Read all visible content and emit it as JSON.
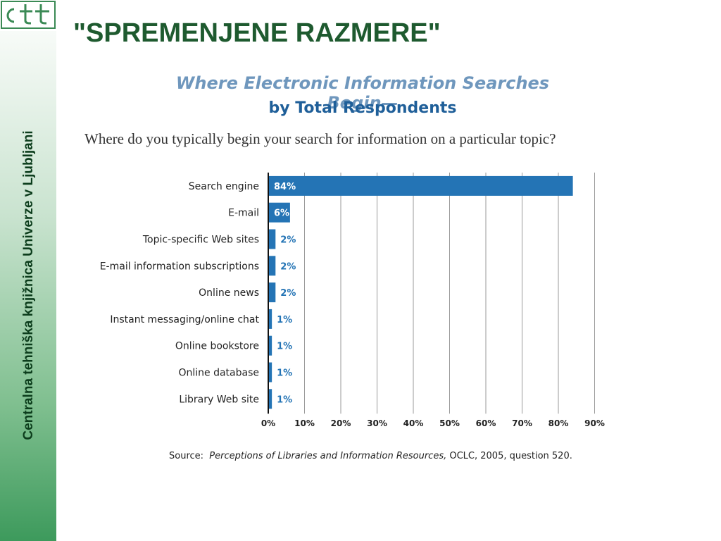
{
  "slide": {
    "title": "\"SPREMENJENE RAZMERE\"",
    "sidebar_text": "Centralna tehniška knjižnica Univerze v Ljubljani"
  },
  "chart_data": {
    "type": "bar",
    "orientation": "horizontal",
    "title": "Where Electronic Information Searches Begin—",
    "subtitle": "by Total Respondents",
    "question": "Where do you typically begin your search for information on a particular topic?",
    "categories": [
      "Search engine",
      "E-mail",
      "Topic-specific Web sites",
      "E-mail information subscriptions",
      "Online news",
      "Instant messaging/online chat",
      "Online bookstore",
      "Online database",
      "Library Web site"
    ],
    "values": [
      84,
      6,
      2,
      2,
      2,
      1,
      1,
      1,
      1
    ],
    "value_labels": [
      "84%",
      "6%",
      "2%",
      "2%",
      "2%",
      "1%",
      "1%",
      "1%",
      "1%"
    ],
    "xlim": [
      0,
      90
    ],
    "x_ticks": [
      0,
      10,
      20,
      30,
      40,
      50,
      60,
      70,
      80,
      90
    ],
    "x_tick_labels": [
      "0%",
      "10%",
      "20%",
      "30%",
      "40%",
      "50%",
      "60%",
      "70%",
      "80%",
      "90%"
    ],
    "grid": true,
    "bar_color": "#2474b5",
    "label_color_inside": "#ffffff",
    "label_color_outside": "#2474b5",
    "source_prefix": "Source:",
    "source_work": "Perceptions of Libraries and Information Resources,",
    "source_rest": "OCLC, 2005, question 520."
  },
  "colors": {
    "title_green": "#1e5a2f",
    "chart_title_light": "#6f97bd",
    "chart_title_dark": "#1f5f99"
  },
  "icons": {
    "logo": "ctk-logo"
  }
}
